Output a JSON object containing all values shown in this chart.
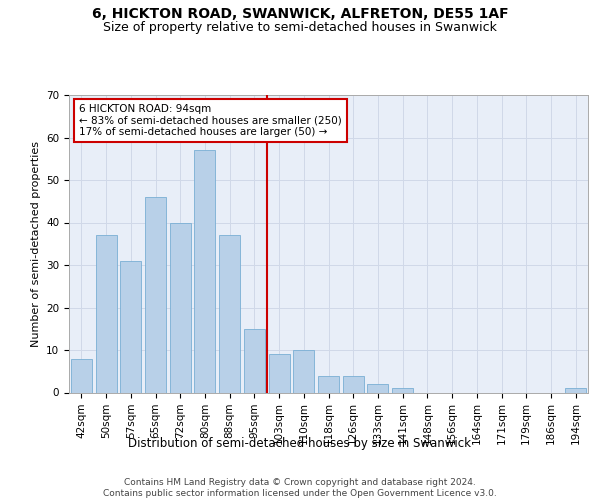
{
  "title": "6, HICKTON ROAD, SWANWICK, ALFRETON, DE55 1AF",
  "subtitle": "Size of property relative to semi-detached houses in Swanwick",
  "xlabel": "Distribution of semi-detached houses by size in Swanwick",
  "ylabel": "Number of semi-detached properties",
  "categories": [
    "42sqm",
    "50sqm",
    "57sqm",
    "65sqm",
    "72sqm",
    "80sqm",
    "88sqm",
    "95sqm",
    "103sqm",
    "110sqm",
    "118sqm",
    "126sqm",
    "133sqm",
    "141sqm",
    "148sqm",
    "156sqm",
    "164sqm",
    "171sqm",
    "179sqm",
    "186sqm",
    "194sqm"
  ],
  "values": [
    8,
    37,
    31,
    46,
    40,
    57,
    37,
    15,
    9,
    10,
    4,
    4,
    2,
    1,
    0,
    0,
    0,
    0,
    0,
    0,
    1
  ],
  "bar_color": "#b8d0e8",
  "bar_edge_color": "#7aafd4",
  "property_line_label": "6 HICKTON ROAD: 94sqm",
  "smaller_pct": "83%",
  "smaller_count": 250,
  "larger_pct": "17%",
  "larger_count": 50,
  "annotation_box_color": "#ffffff",
  "annotation_box_edge": "#cc0000",
  "vline_color": "#cc0000",
  "vline_x": 7.5,
  "ylim": [
    0,
    70
  ],
  "yticks": [
    0,
    10,
    20,
    30,
    40,
    50,
    60,
    70
  ],
  "grid_color": "#d0d8e8",
  "bg_color": "#e8eef8",
  "footer": "Contains HM Land Registry data © Crown copyright and database right 2024.\nContains public sector information licensed under the Open Government Licence v3.0.",
  "title_fontsize": 10,
  "subtitle_fontsize": 9,
  "xlabel_fontsize": 8.5,
  "ylabel_fontsize": 8,
  "tick_fontsize": 7.5,
  "footer_fontsize": 6.5,
  "ann_fontsize": 7.5
}
